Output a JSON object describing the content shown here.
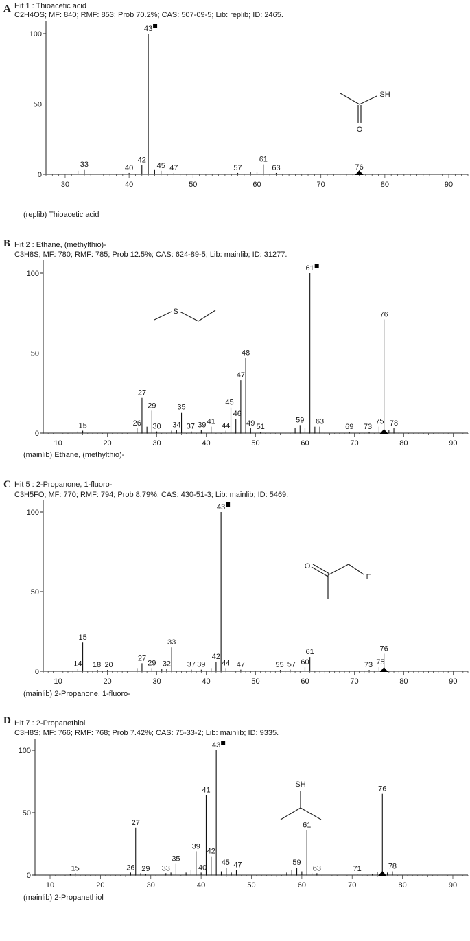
{
  "chart_data": [
    {
      "type": "bar",
      "panel": "A",
      "title": "Hit 1 : Thioacetic acid",
      "subtitle": "C2H4OS; MF: 840; RMF: 853; Prob 70.2%; CAS: 507-09-5; Lib: replib; ID: 2465.",
      "footer": "(replib) Thioacetic acid",
      "xlim": [
        27,
        93
      ],
      "ylim": [
        0,
        105
      ],
      "xticks": [
        30,
        40,
        50,
        60,
        70,
        80,
        90
      ],
      "yticks": [
        0,
        50,
        100
      ],
      "base_peak": 43,
      "molecular_ion": 76,
      "peaks": [
        {
          "mz": 32,
          "i": 2.5
        },
        {
          "mz": 33,
          "i": 3.5,
          "label": "33"
        },
        {
          "mz": 40,
          "i": 1.0,
          "label": "40"
        },
        {
          "mz": 42,
          "i": 6.5,
          "label": "42"
        },
        {
          "mz": 43,
          "i": 100,
          "label": "43"
        },
        {
          "mz": 44,
          "i": 3.5
        },
        {
          "mz": 45,
          "i": 2.5,
          "label": "45"
        },
        {
          "mz": 47,
          "i": 1.0,
          "label": "47"
        },
        {
          "mz": 57,
          "i": 1.0,
          "label": "57"
        },
        {
          "mz": 59,
          "i": 1.5
        },
        {
          "mz": 60,
          "i": 2.0
        },
        {
          "mz": 61,
          "i": 7.0,
          "label": "61"
        },
        {
          "mz": 63,
          "i": 1.0,
          "label": "63"
        },
        {
          "mz": 76,
          "i": 1.5,
          "label": "76"
        }
      ],
      "structure": {
        "kind": "thioacetic",
        "atoms": [
          {
            "label": "SH"
          },
          {
            "label": "O"
          }
        ]
      }
    },
    {
      "type": "bar",
      "panel": "B",
      "title": "Hit 2 : Ethane, (methylthio)-",
      "subtitle": "C3H8S; MF: 780; RMF: 785; Prob 12.5%; CAS: 624-89-5; Lib: mainlib; ID: 31277.",
      "footer": "(mainlib) Ethane, (methylthio)-",
      "xlim": [
        7,
        93
      ],
      "ylim": [
        0,
        105
      ],
      "xticks": [
        10,
        20,
        30,
        40,
        50,
        60,
        70,
        80,
        90
      ],
      "yticks": [
        0,
        50,
        100
      ],
      "base_peak": 61,
      "molecular_ion": 76,
      "peaks": [
        {
          "mz": 14,
          "i": 1.0
        },
        {
          "mz": 15,
          "i": 1.5,
          "label": "15"
        },
        {
          "mz": 26,
          "i": 3.0,
          "label": "26"
        },
        {
          "mz": 27,
          "i": 22,
          "label": "27"
        },
        {
          "mz": 28,
          "i": 4.0
        },
        {
          "mz": 29,
          "i": 14,
          "label": "29"
        },
        {
          "mz": 30,
          "i": 1.0,
          "label": "30"
        },
        {
          "mz": 33,
          "i": 1.5
        },
        {
          "mz": 34,
          "i": 2.0,
          "label": "34"
        },
        {
          "mz": 35,
          "i": 13,
          "label": "35"
        },
        {
          "mz": 37,
          "i": 1.0,
          "label": "37"
        },
        {
          "mz": 39,
          "i": 2.0,
          "label": "39"
        },
        {
          "mz": 41,
          "i": 4.0,
          "label": "41"
        },
        {
          "mz": 44,
          "i": 1.5,
          "label": "44"
        },
        {
          "mz": 45,
          "i": 16,
          "label": "45"
        },
        {
          "mz": 46,
          "i": 9,
          "label": "46"
        },
        {
          "mz": 47,
          "i": 33,
          "label": "47"
        },
        {
          "mz": 48,
          "i": 47,
          "label": "48"
        },
        {
          "mz": 49,
          "i": 3.0,
          "label": "49"
        },
        {
          "mz": 51,
          "i": 0.8,
          "label": "51"
        },
        {
          "mz": 58,
          "i": 3.0
        },
        {
          "mz": 59,
          "i": 5.0,
          "label": "59"
        },
        {
          "mz": 60,
          "i": 3.0
        },
        {
          "mz": 61,
          "i": 100,
          "label": "61"
        },
        {
          "mz": 62,
          "i": 4.0
        },
        {
          "mz": 63,
          "i": 4.0,
          "label": "63"
        },
        {
          "mz": 69,
          "i": 0.8,
          "label": "69"
        },
        {
          "mz": 73,
          "i": 0.8,
          "label": "73"
        },
        {
          "mz": 75,
          "i": 4.0,
          "label": "75"
        },
        {
          "mz": 76,
          "i": 71,
          "label": "76"
        },
        {
          "mz": 77,
          "i": 2.0
        },
        {
          "mz": 78,
          "i": 3.0,
          "label": "78"
        }
      ],
      "structure": {
        "kind": "methylthioethane",
        "atoms": [
          {
            "label": "S"
          }
        ]
      }
    },
    {
      "type": "bar",
      "panel": "C",
      "title": "Hit 5 : 2-Propanone, 1-fluoro-",
      "subtitle": "C3H5FO; MF: 770; RMF: 794; Prob 8.79%; CAS: 430-51-3; Lib: mainlib; ID: 5469.",
      "footer": "(mainlib) 2-Propanone, 1-fluoro-",
      "xlim": [
        7,
        93
      ],
      "ylim": [
        0,
        105
      ],
      "xticks": [
        10,
        20,
        30,
        40,
        50,
        60,
        70,
        80,
        90
      ],
      "yticks": [
        0,
        50,
        100
      ],
      "base_peak": 43,
      "molecular_ion": 76,
      "peaks": [
        {
          "mz": 14,
          "i": 1.5,
          "label": "14"
        },
        {
          "mz": 15,
          "i": 18,
          "label": "15"
        },
        {
          "mz": 18,
          "i": 0.8,
          "label": "18"
        },
        {
          "mz": 20,
          "i": 0.8,
          "label": "20"
        },
        {
          "mz": 26,
          "i": 2.0
        },
        {
          "mz": 27,
          "i": 5.0,
          "label": "27"
        },
        {
          "mz": 29,
          "i": 2.0,
          "label": "29"
        },
        {
          "mz": 31,
          "i": 1.5
        },
        {
          "mz": 32,
          "i": 1.5,
          "label": "32"
        },
        {
          "mz": 33,
          "i": 15,
          "label": "33"
        },
        {
          "mz": 37,
          "i": 1.0,
          "label": "37"
        },
        {
          "mz": 39,
          "i": 1.0,
          "label": "39"
        },
        {
          "mz": 41,
          "i": 2.0
        },
        {
          "mz": 42,
          "i": 6.0,
          "label": "42"
        },
        {
          "mz": 43,
          "i": 100,
          "label": "43"
        },
        {
          "mz": 44,
          "i": 2.0,
          "label": "44"
        },
        {
          "mz": 47,
          "i": 1.0,
          "label": "47"
        },
        {
          "mz": 55,
          "i": 0.8,
          "label": "55"
        },
        {
          "mz": 57,
          "i": 1.0,
          "label": "57"
        },
        {
          "mz": 60,
          "i": 2.5,
          "label": "60"
        },
        {
          "mz": 61,
          "i": 9,
          "label": "61"
        },
        {
          "mz": 73,
          "i": 0.8,
          "label": "73"
        },
        {
          "mz": 75,
          "i": 2.5,
          "label": "75"
        },
        {
          "mz": 76,
          "i": 11,
          "label": "76"
        }
      ],
      "structure": {
        "kind": "fluoroacetone",
        "atoms": [
          {
            "label": "O"
          },
          {
            "label": "F"
          }
        ]
      }
    },
    {
      "type": "bar",
      "panel": "D",
      "title": "Hit 7 : 2-Propanethiol",
      "subtitle": "C3H8S; MF: 766; RMF: 768; Prob 7.42%; CAS: 75-33-2; Lib: mainlib; ID: 9335.",
      "footer": "(mainlib) 2-Propanethiol",
      "xlim": [
        7,
        93
      ],
      "ylim": [
        0,
        105
      ],
      "xticks": [
        10,
        20,
        30,
        40,
        50,
        60,
        70,
        80,
        90
      ],
      "yticks": [
        0,
        50,
        100
      ],
      "base_peak": 43,
      "molecular_ion": 76,
      "peaks": [
        {
          "mz": 14,
          "i": 1.0
        },
        {
          "mz": 15,
          "i": 1.5,
          "label": "15"
        },
        {
          "mz": 26,
          "i": 2.0,
          "label": "26"
        },
        {
          "mz": 27,
          "i": 38,
          "label": "27"
        },
        {
          "mz": 28,
          "i": 1.5
        },
        {
          "mz": 29,
          "i": 1.0,
          "label": "29"
        },
        {
          "mz": 33,
          "i": 1.5,
          "label": "33"
        },
        {
          "mz": 34,
          "i": 2.0
        },
        {
          "mz": 35,
          "i": 9,
          "label": "35"
        },
        {
          "mz": 37,
          "i": 2.0
        },
        {
          "mz": 38,
          "i": 4.0
        },
        {
          "mz": 39,
          "i": 19,
          "label": "39"
        },
        {
          "mz": 40,
          "i": 2.0,
          "label": "40"
        },
        {
          "mz": 41,
          "i": 64,
          "label": "41"
        },
        {
          "mz": 42,
          "i": 15,
          "label": "42"
        },
        {
          "mz": 43,
          "i": 100,
          "label": "43"
        },
        {
          "mz": 44,
          "i": 3.0
        },
        {
          "mz": 45,
          "i": 6.0,
          "label": "45"
        },
        {
          "mz": 46,
          "i": 2.0
        },
        {
          "mz": 47,
          "i": 4.0,
          "label": "47"
        },
        {
          "mz": 57,
          "i": 2.0
        },
        {
          "mz": 58,
          "i": 4.0
        },
        {
          "mz": 59,
          "i": 6.0,
          "label": "59"
        },
        {
          "mz": 60,
          "i": 3.0
        },
        {
          "mz": 61,
          "i": 36,
          "label": "61"
        },
        {
          "mz": 62,
          "i": 1.5
        },
        {
          "mz": 63,
          "i": 1.5,
          "label": "63"
        },
        {
          "mz": 71,
          "i": 0.8,
          "label": "71"
        },
        {
          "mz": 74,
          "i": 1.0
        },
        {
          "mz": 75,
          "i": 2.5
        },
        {
          "mz": 76,
          "i": 65,
          "label": "76"
        },
        {
          "mz": 77,
          "i": 2.0
        },
        {
          "mz": 78,
          "i": 3.0,
          "label": "78"
        }
      ],
      "structure": {
        "kind": "propanethiol",
        "atoms": [
          {
            "label": "SH"
          }
        ]
      }
    }
  ]
}
